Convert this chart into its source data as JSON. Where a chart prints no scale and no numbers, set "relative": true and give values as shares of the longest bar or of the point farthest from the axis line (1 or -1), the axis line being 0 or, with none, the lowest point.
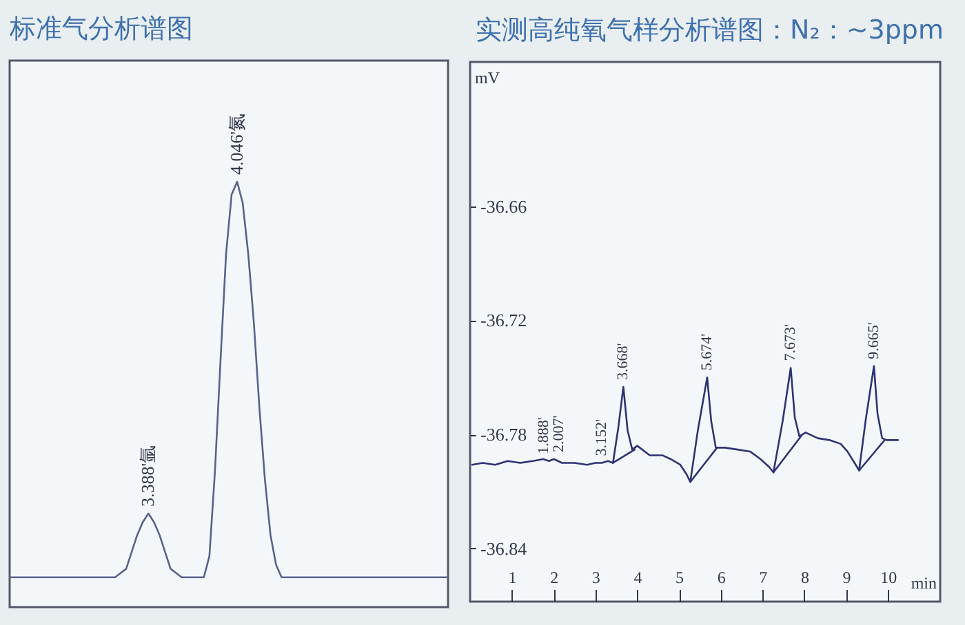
{
  "chart_data": [
    {
      "type": "line",
      "title": "标准气分析谱图",
      "relative": true,
      "categories": [
        null,
        null,
        null,
        null,
        null,
        null,
        null,
        null,
        null,
        null,
        null,
        null,
        null,
        null,
        null,
        null,
        null,
        null,
        null,
        null,
        null,
        null,
        null,
        null,
        null,
        null,
        null,
        null,
        null,
        null,
        null,
        null,
        null,
        null,
        null,
        null,
        null,
        null,
        null,
        null,
        null,
        null,
        null,
        null,
        null,
        null,
        null,
        null,
        null,
        null,
        null,
        null,
        null,
        null,
        null,
        null,
        null,
        null,
        null,
        null,
        null,
        null,
        null,
        null,
        null,
        null,
        null,
        null,
        null,
        null,
        null,
        null,
        null,
        null,
        null,
        null,
        null,
        null,
        null,
        null
      ],
      "series": [
        {
          "color": "#58628c",
          "values": [
            0.07,
            0.07,
            0.07,
            0.07,
            0.07,
            0.07,
            0.07,
            0.07,
            0.07,
            0.07,
            0.07,
            0.07,
            0.07,
            0.07,
            0.07,
            0.07,
            0.07,
            0.07,
            0.07,
            0.07,
            0.08,
            0.09,
            0.13,
            0.17,
            0.2,
            0.22,
            0.2,
            0.17,
            0.13,
            0.09,
            0.08,
            0.07,
            0.07,
            0.07,
            0.07,
            0.07,
            0.12,
            0.32,
            0.58,
            0.83,
            0.97,
            1,
            0.95,
            0.83,
            0.67,
            0.47,
            0.3,
            0.17,
            0.1,
            0.07,
            0.07,
            0.07,
            0.07,
            0.07,
            0.07,
            0.07,
            0.07,
            0.07,
            0.07,
            0.07,
            0.07,
            0.07,
            0.07,
            0.07,
            0.07,
            0.07,
            0.07,
            0.07,
            0.07,
            0.07,
            0.07,
            0.07,
            0.07,
            0.07,
            0.07,
            0.07,
            0.07,
            0.07,
            0.07,
            0.07
          ]
        }
      ],
      "annotations": [
        {
          "text": "3.388'氩",
          "y": 0.22
        },
        {
          "text": "4.046'氮",
          "y": 1
        }
      ]
    },
    {
      "type": "line",
      "title": "实测高纯氧气样分析谱图：N₂：~3ppm",
      "xlabel": "min",
      "ylabel": "mV",
      "xlim": [
        0,
        11.25
      ],
      "ylim": [
        -36.868,
        -36.584
      ],
      "xticks": [
        1,
        2,
        3,
        4,
        5,
        6,
        7,
        8,
        9,
        10
      ],
      "yticks": [
        -36.66,
        -36.72,
        -36.78,
        -36.84
      ],
      "series": [
        {
          "color": "#2e3372",
          "x": [
            0.05,
            0.3,
            0.6,
            0.9,
            1.2,
            1.5,
            1.75,
            1.888,
            2.007,
            2.2,
            2.5,
            2.8,
            3.0,
            3.152,
            3.3,
            3.42,
            3.55,
            3.668,
            3.77,
            3.88,
            4.0,
            4.3,
            4.6,
            4.8,
            5.03,
            5.18,
            5.27,
            5.45,
            5.674,
            5.77,
            5.88,
            6.1,
            6.4,
            6.7,
            6.95,
            7.15,
            7.26,
            7.48,
            7.673,
            7.77,
            7.88,
            8.03,
            8.32,
            8.6,
            8.87,
            9.03,
            9.2,
            9.31,
            9.47,
            9.665,
            9.75,
            9.86,
            9.97,
            10.11,
            10.24
          ],
          "values": [
            -36.796,
            -36.795,
            -36.796,
            -36.794,
            -36.795,
            -36.794,
            -36.793,
            -36.794,
            -36.793,
            -36.795,
            -36.795,
            -36.796,
            -36.795,
            -36.795,
            -36.794,
            -36.795,
            -36.776,
            -36.755,
            -36.778,
            -36.788,
            -36.786,
            -36.791,
            -36.791,
            -36.793,
            -36.796,
            -36.801,
            -36.805,
            -36.778,
            -36.75,
            -36.773,
            -36.787,
            -36.787,
            -36.788,
            -36.789,
            -36.793,
            -36.797,
            -36.8,
            -36.773,
            -36.745,
            -36.771,
            -36.781,
            -36.779,
            -36.782,
            -36.783,
            -36.785,
            -36.789,
            -36.795,
            -36.799,
            -36.772,
            -36.744,
            -36.769,
            -36.782,
            -36.783,
            -36.783,
            -36.783
          ]
        },
        {
          "color": "#2e3372",
          "x": [
            3.42,
            3.94,
            4.6,
            5.27,
            5.91,
            6.6,
            7.26,
            7.92,
            8.6,
            9.31,
            9.92
          ],
          "values": [
            -36.795,
            -36.788,
            null,
            -36.805,
            -36.787,
            null,
            -36.8,
            -36.781,
            null,
            -36.799,
            -36.783
          ]
        }
      ],
      "annotations": [
        {
          "text": "1.888'",
          "x": 1.888,
          "y": -36.794
        },
        {
          "text": "2.007'",
          "x": 2.007,
          "y": -36.793
        },
        {
          "text": "3.152'",
          "x": 3.152,
          "y": -36.795
        },
        {
          "text": "3.668'",
          "x": 3.668,
          "y": -36.755
        },
        {
          "text": "5.674'",
          "x": 5.674,
          "y": -36.75
        },
        {
          "text": "7.673'",
          "x": 7.673,
          "y": -36.745
        },
        {
          "text": "9.665'",
          "x": 9.665,
          "y": -36.744
        }
      ]
    }
  ]
}
